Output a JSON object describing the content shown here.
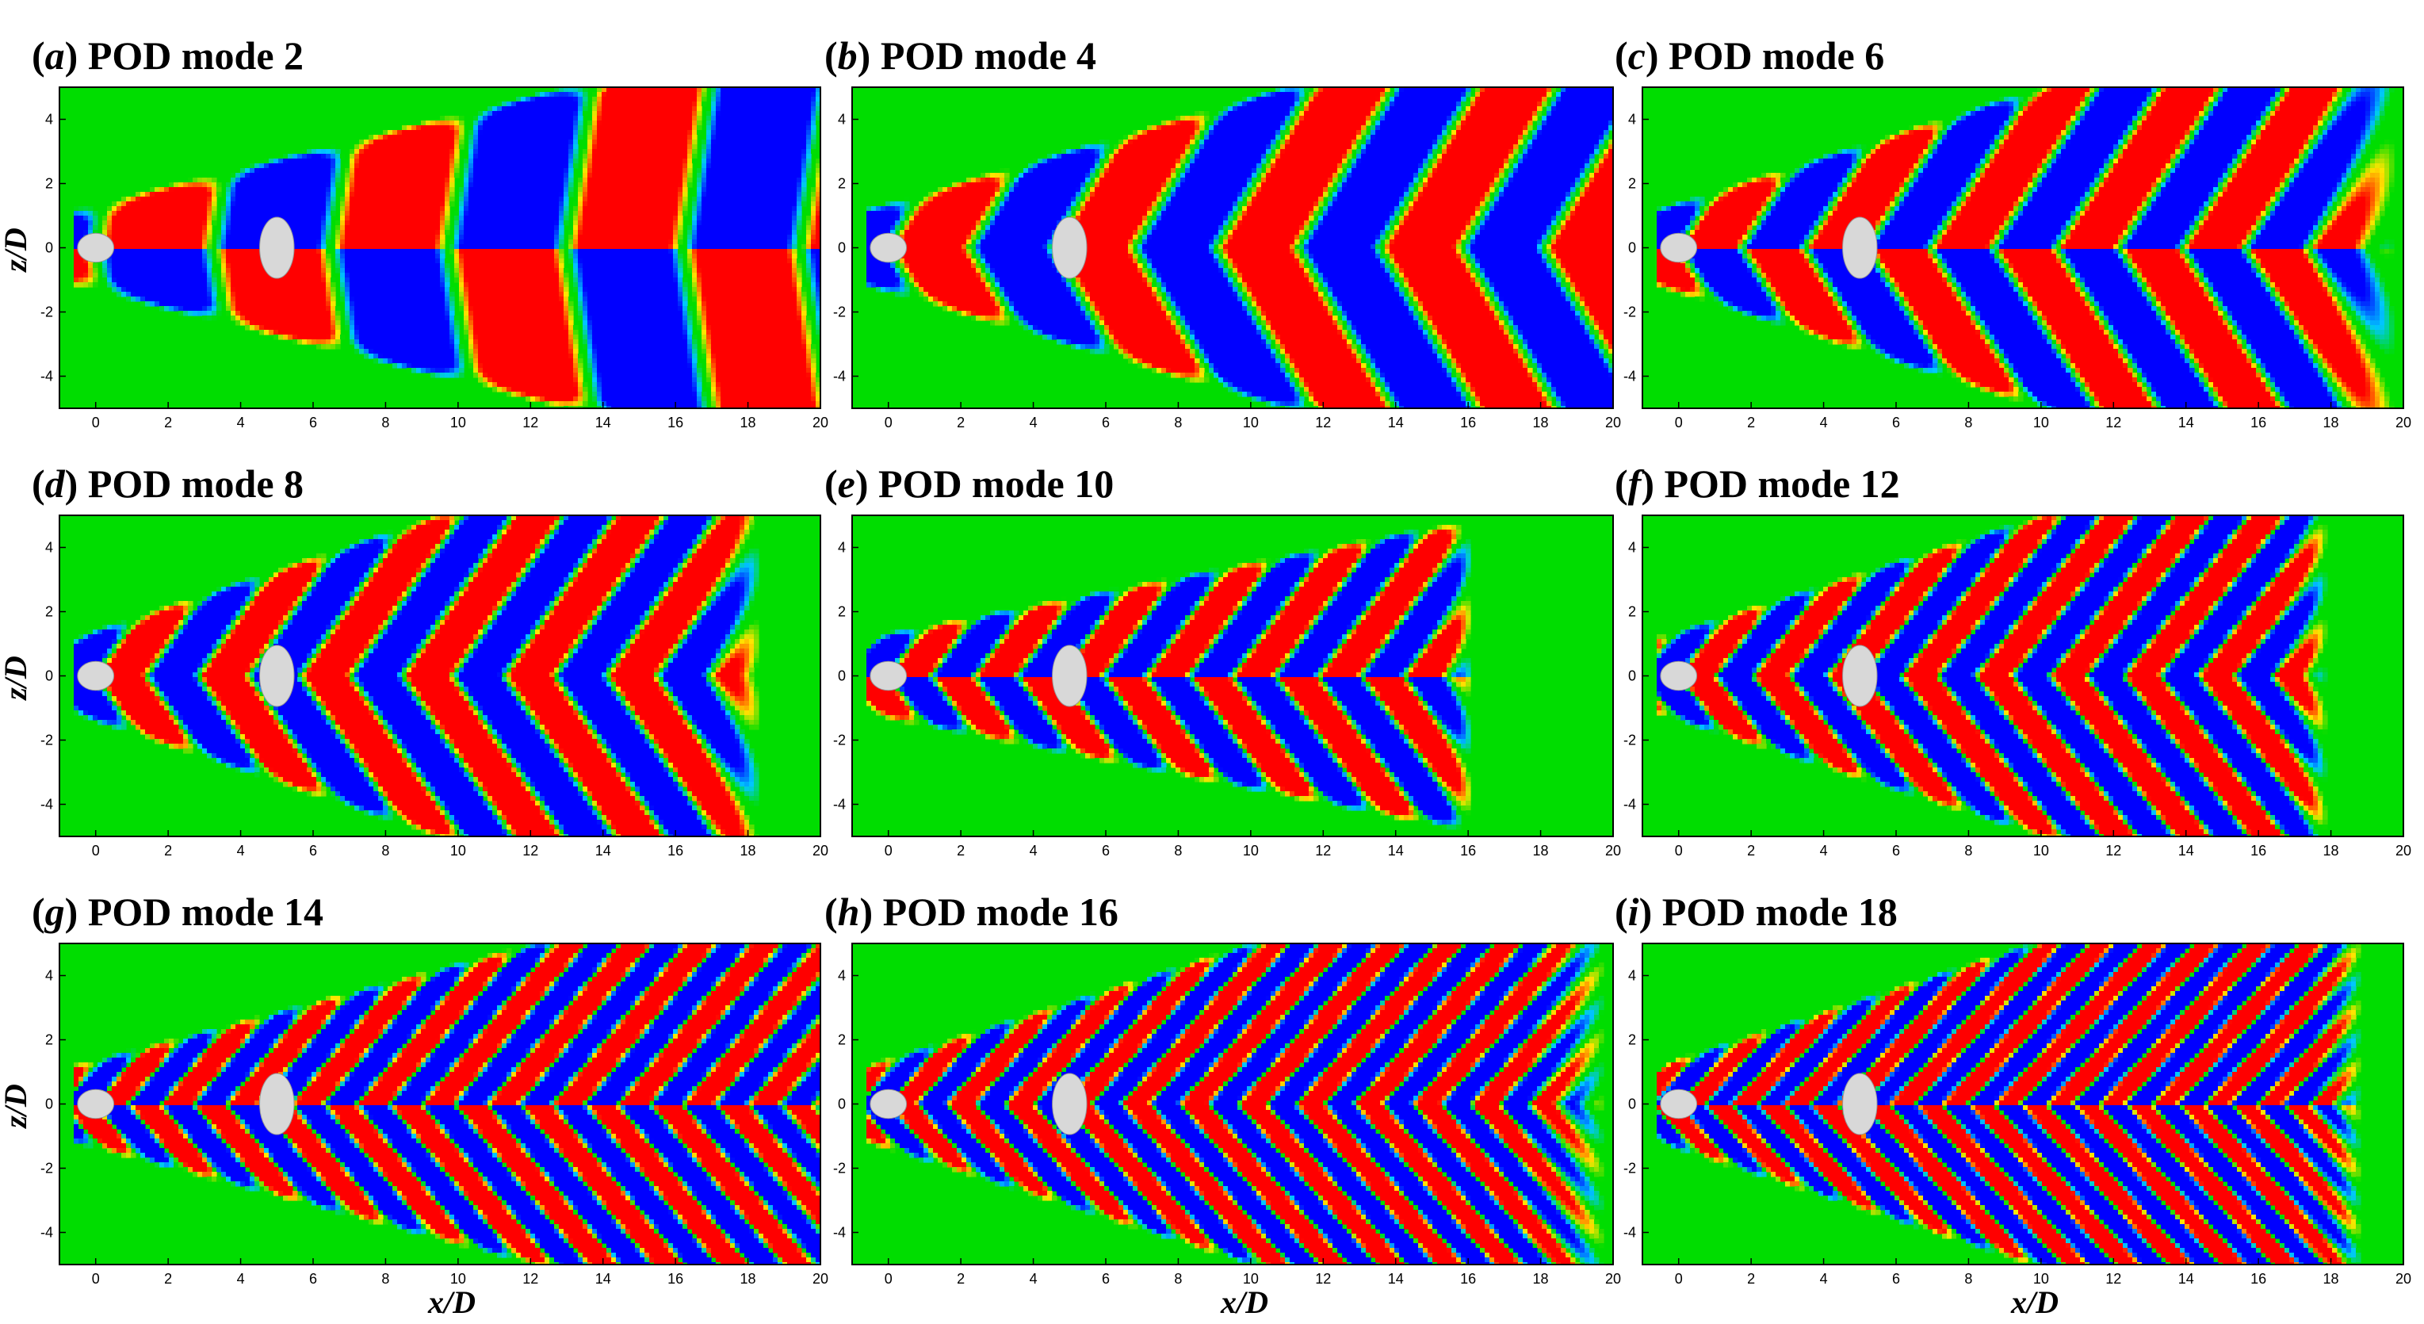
{
  "chart_data": [
    {
      "type": "heatmap",
      "panel": "a",
      "title": "POD mode 2",
      "mode": 2,
      "xlabel": "x/D",
      "ylabel": "z/D",
      "xlim": [
        -1,
        20
      ],
      "ylim": [
        -5,
        5
      ],
      "xticks": [
        0,
        2,
        4,
        6,
        8,
        10,
        12,
        14,
        16,
        18,
        20
      ],
      "yticks": [
        -4,
        -2,
        0,
        2,
        4
      ],
      "cylinders": [
        {
          "x": 0,
          "z": 0,
          "d": 1
        },
        {
          "x": 5,
          "z": 0,
          "d": 1
        }
      ],
      "colormap": [
        "#0000ff",
        "#00e5ff",
        "#00dd00",
        "#ffee00",
        "#ff0000"
      ]
    },
    {
      "type": "heatmap",
      "panel": "b",
      "title": "POD mode 4",
      "mode": 4,
      "xlabel": "x/D",
      "ylabel": "z/D",
      "xlim": [
        -1,
        20
      ],
      "ylim": [
        -5,
        5
      ],
      "xticks": [
        0,
        2,
        4,
        6,
        8,
        10,
        12,
        14,
        16,
        18,
        20
      ],
      "yticks": [
        -4,
        -2,
        0,
        2,
        4
      ],
      "cylinders": [
        {
          "x": 0,
          "z": 0,
          "d": 1
        },
        {
          "x": 5,
          "z": 0,
          "d": 1
        }
      ],
      "colormap": [
        "#0000ff",
        "#00e5ff",
        "#00dd00",
        "#ffee00",
        "#ff0000"
      ]
    },
    {
      "type": "heatmap",
      "panel": "c",
      "title": "POD mode 6",
      "mode": 6,
      "xlabel": "x/D",
      "ylabel": "z/D",
      "xlim": [
        -1,
        20
      ],
      "ylim": [
        -5,
        5
      ],
      "xticks": [
        0,
        2,
        4,
        6,
        8,
        10,
        12,
        14,
        16,
        18,
        20
      ],
      "yticks": [
        -4,
        -2,
        0,
        2,
        4
      ],
      "cylinders": [
        {
          "x": 0,
          "z": 0,
          "d": 1
        },
        {
          "x": 5,
          "z": 0,
          "d": 1
        }
      ],
      "colormap": [
        "#0000ff",
        "#00e5ff",
        "#00dd00",
        "#ffee00",
        "#ff0000"
      ]
    },
    {
      "type": "heatmap",
      "panel": "d",
      "title": "POD mode 8",
      "mode": 8,
      "xlabel": "x/D",
      "ylabel": "z/D",
      "xlim": [
        -1,
        20
      ],
      "ylim": [
        -5,
        5
      ],
      "xticks": [
        0,
        2,
        4,
        6,
        8,
        10,
        12,
        14,
        16,
        18,
        20
      ],
      "yticks": [
        -4,
        -2,
        0,
        2,
        4
      ],
      "cylinders": [
        {
          "x": 0,
          "z": 0,
          "d": 1
        },
        {
          "x": 5,
          "z": 0,
          "d": 1
        }
      ],
      "colormap": [
        "#0000ff",
        "#00e5ff",
        "#00dd00",
        "#ffee00",
        "#ff0000"
      ]
    },
    {
      "type": "heatmap",
      "panel": "e",
      "title": "POD mode 10",
      "mode": 10,
      "xlabel": "x/D",
      "ylabel": "z/D",
      "xlim": [
        -1,
        20
      ],
      "ylim": [
        -5,
        5
      ],
      "xticks": [
        0,
        2,
        4,
        6,
        8,
        10,
        12,
        14,
        16,
        18,
        20
      ],
      "yticks": [
        -4,
        -2,
        0,
        2,
        4
      ],
      "cylinders": [
        {
          "x": 0,
          "z": 0,
          "d": 1
        },
        {
          "x": 5,
          "z": 0,
          "d": 1
        }
      ],
      "colormap": [
        "#0000ff",
        "#00e5ff",
        "#00dd00",
        "#ffee00",
        "#ff0000"
      ]
    },
    {
      "type": "heatmap",
      "panel": "f",
      "title": "POD mode 12",
      "mode": 12,
      "xlabel": "x/D",
      "ylabel": "z/D",
      "xlim": [
        -1,
        20
      ],
      "ylim": [
        -5,
        5
      ],
      "xticks": [
        0,
        2,
        4,
        6,
        8,
        10,
        12,
        14,
        16,
        18,
        20
      ],
      "yticks": [
        -4,
        -2,
        0,
        2,
        4
      ],
      "cylinders": [
        {
          "x": 0,
          "z": 0,
          "d": 1
        },
        {
          "x": 5,
          "z": 0,
          "d": 1
        }
      ],
      "colormap": [
        "#0000ff",
        "#00e5ff",
        "#00dd00",
        "#ffee00",
        "#ff0000"
      ]
    },
    {
      "type": "heatmap",
      "panel": "g",
      "title": "POD mode 14",
      "mode": 14,
      "xlabel": "x/D",
      "ylabel": "z/D",
      "xlim": [
        -1,
        20
      ],
      "ylim": [
        -5,
        5
      ],
      "xticks": [
        0,
        2,
        4,
        6,
        8,
        10,
        12,
        14,
        16,
        18,
        20
      ],
      "yticks": [
        -4,
        -2,
        0,
        2,
        4
      ],
      "cylinders": [
        {
          "x": 0,
          "z": 0,
          "d": 1
        },
        {
          "x": 5,
          "z": 0,
          "d": 1
        }
      ],
      "colormap": [
        "#0000ff",
        "#00e5ff",
        "#00dd00",
        "#ffee00",
        "#ff0000"
      ]
    },
    {
      "type": "heatmap",
      "panel": "h",
      "title": "POD mode 16",
      "mode": 16,
      "xlabel": "x/D",
      "ylabel": "z/D",
      "xlim": [
        -1,
        20
      ],
      "ylim": [
        -5,
        5
      ],
      "xticks": [
        0,
        2,
        4,
        6,
        8,
        10,
        12,
        14,
        16,
        18,
        20
      ],
      "yticks": [
        -4,
        -2,
        0,
        2,
        4
      ],
      "cylinders": [
        {
          "x": 0,
          "z": 0,
          "d": 1
        },
        {
          "x": 5,
          "z": 0,
          "d": 1
        }
      ],
      "colormap": [
        "#0000ff",
        "#00e5ff",
        "#00dd00",
        "#ffee00",
        "#ff0000"
      ]
    },
    {
      "type": "heatmap",
      "panel": "i",
      "title": "POD mode 18",
      "mode": 18,
      "xlabel": "x/D",
      "ylabel": "z/D",
      "xlim": [
        -1,
        20
      ],
      "ylim": [
        -5,
        5
      ],
      "xticks": [
        0,
        2,
        4,
        6,
        8,
        10,
        12,
        14,
        16,
        18,
        20
      ],
      "yticks": [
        -4,
        -2,
        0,
        2,
        4
      ],
      "cylinders": [
        {
          "x": 0,
          "z": 0,
          "d": 1
        },
        {
          "x": 5,
          "z": 0,
          "d": 1
        }
      ],
      "colormap": [
        "#0000ff",
        "#00e5ff",
        "#00dd00",
        "#ffee00",
        "#ff0000"
      ]
    }
  ],
  "labels": {
    "panels": [
      {
        "letter": "a",
        "title": "POD mode 2"
      },
      {
        "letter": "b",
        "title": "POD mode 4"
      },
      {
        "letter": "c",
        "title": "POD mode 6"
      },
      {
        "letter": "d",
        "title": "POD mode 8"
      },
      {
        "letter": "e",
        "title": "POD mode 10"
      },
      {
        "letter": "f",
        "title": "POD mode 12"
      },
      {
        "letter": "g",
        "title": "POD mode 14"
      },
      {
        "letter": "h",
        "title": "POD mode 16"
      },
      {
        "letter": "i",
        "title": "POD mode 18"
      }
    ],
    "xlabel": "x/D",
    "ylabel": "z/D"
  },
  "colors": {
    "background_field": "#00dd00",
    "positive": "#ff0000",
    "negative": "#0000ff",
    "cylinder": "#d8d8d8"
  }
}
